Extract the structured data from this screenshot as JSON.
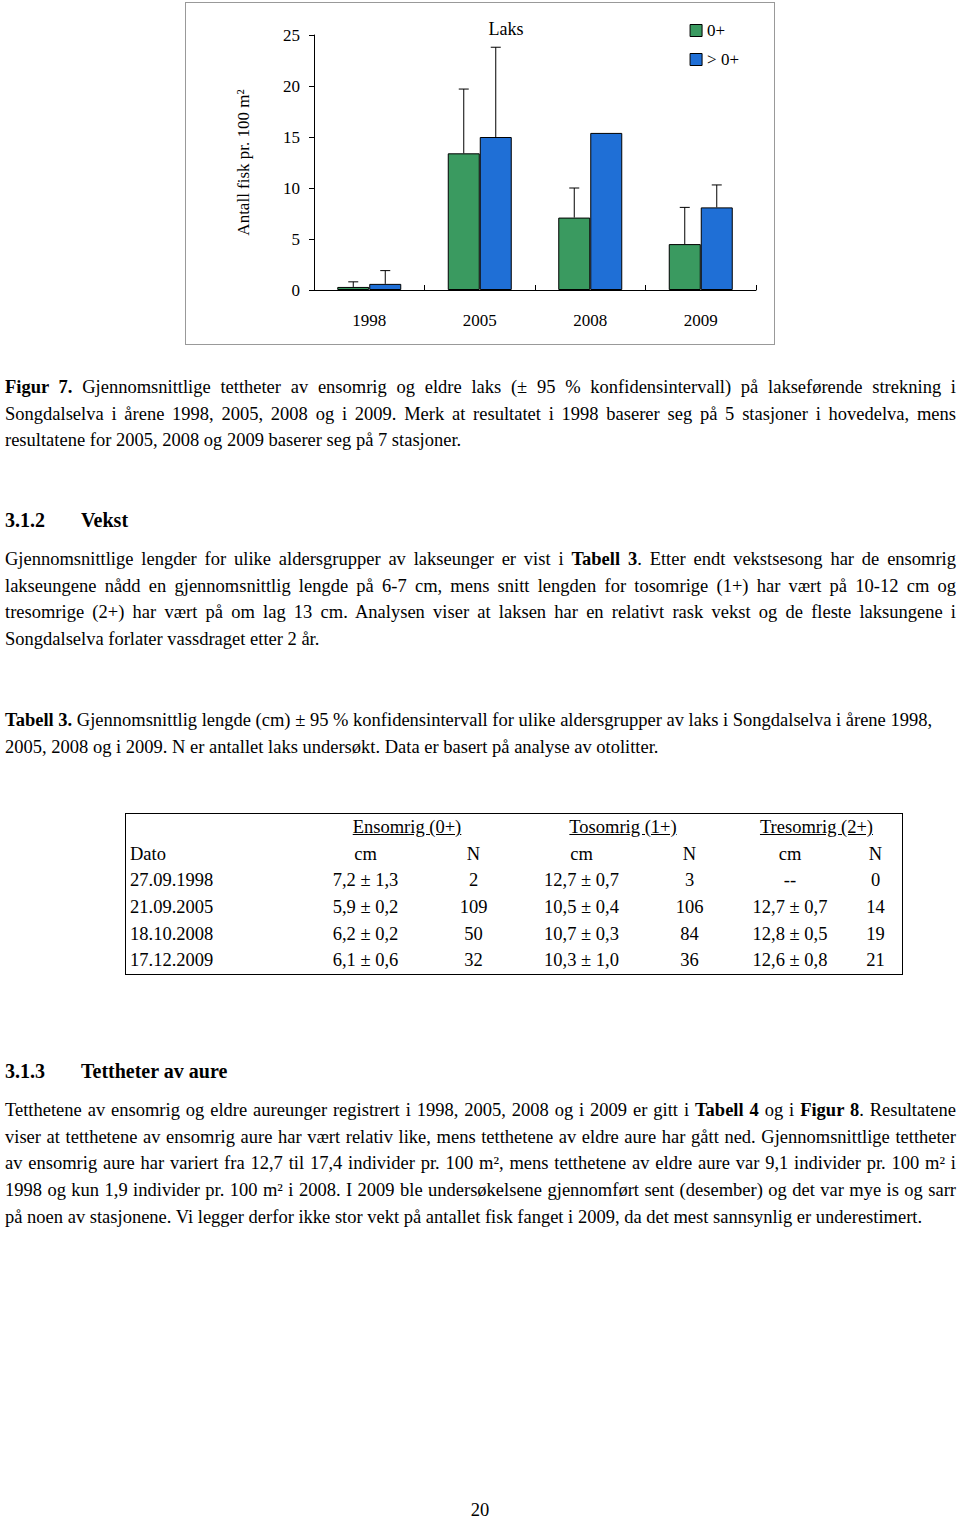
{
  "chart_data": {
    "type": "bar",
    "title": "Laks",
    "y_label": "Antall fisk pr. 100 m²",
    "categories": [
      "1998",
      "2005",
      "2008",
      "2009"
    ],
    "series": [
      {
        "name": "0+",
        "color": "#3a9a60",
        "values": [
          0.3,
          13.4,
          7.1,
          4.5
        ],
        "errors": [
          0.5,
          6.3,
          2.9,
          3.6
        ]
      },
      {
        "name": "> 0+",
        "color": "#1f6fd6",
        "values": [
          0.6,
          15.0,
          15.4,
          8.1
        ],
        "errors": [
          1.3,
          8.8,
          null,
          2.2
        ]
      }
    ],
    "ylim": [
      0,
      25
    ],
    "yticks": [
      0,
      5,
      10,
      15,
      20,
      25
    ],
    "grid": false,
    "legend": "top-right"
  },
  "document": {
    "caption": [
      {
        "t": "Figur 7.",
        "b": true
      },
      {
        "t": " Gjennomsnittlige tettheter av ensomrig og eldre laks (± 95 % konfidensintervall) på lakseførende strekning i Songdalselva i årene 1998, 2005, 2008 og i 2009. Merk at resultatet i 1998 baserer seg på 5 stasjoner i hovedelva, mens resultatene for 2005, 2008 og 2009 baserer seg på 7 stasjoner."
      }
    ],
    "section1": {
      "number": "3.1.2",
      "heading": "Vekst",
      "paragraph": [
        {
          "t": "Gjennomsnittlige lengder for ulike aldersgrupper av lakseunger er vist i "
        },
        {
          "t": "Tabell 3",
          "b": true
        },
        {
          "t": ". Etter endt vekstsesong har de ensomrig lakseungene nådd en gjennomsnittlig lengde på 6-7 cm, mens snitt lengden for tosomrige (1+) har vært på 10-12 cm og tresomrige (2+) har vært på om lag 13 cm. Analysen viser at laksen har en relativt rask vekst og de fleste laksungene i Songdalselva forlater vassdraget etter 2 år."
        }
      ]
    },
    "table_caption": [
      {
        "t": "Tabell 3.",
        "b": true
      },
      {
        "t": " Gjennomsnittlig lengde (cm) ± 95 % konfidensintervall for ulike aldersgrupper av laks i Songdalselva i årene 1998, 2005, 2008 og i 2009. N er antallet laks undersøkt. Data er basert på analyse av otolitter."
      }
    ],
    "table": {
      "groups": [
        "Ensomrig (0+)",
        "Tosomrig (1+)",
        "Tresomrig (2+)"
      ],
      "columns": [
        "Dato",
        "cm",
        "N",
        "cm",
        "N",
        "cm",
        "N"
      ],
      "rows": [
        [
          "27.09.1998",
          "7,2 ± 1,3",
          "2",
          "12,7 ± 0,7",
          "3",
          "--",
          "0"
        ],
        [
          "21.09.2005",
          "5,9 ± 0,2",
          "109",
          "10,5 ± 0,4",
          "106",
          "12,7 ± 0,7",
          "14"
        ],
        [
          "18.10.2008",
          "6,2 ± 0,2",
          "50",
          "10,7 ± 0,3",
          "84",
          "12,8 ± 0,5",
          "19"
        ],
        [
          "17.12.2009",
          "6,1 ± 0,6",
          "32",
          "10,3 ± 1,0",
          "36",
          "12,6 ± 0,8",
          "21"
        ]
      ]
    },
    "section2": {
      "number": "3.1.3",
      "heading": "Tettheter av aure",
      "paragraph": [
        {
          "t": "Tetthetene av ensomrig og eldre aureunger registrert i 1998, 2005, 2008 og i 2009 er gitt i "
        },
        {
          "t": "Tabell 4",
          "b": true
        },
        {
          "t": " og i "
        },
        {
          "t": "Figur 8",
          "b": true
        },
        {
          "t": ". Resultatene viser at tetthetene av ensomrig aure har vært relativ like, mens tetthetene av eldre aure har gått ned. Gjennomsnittlige tettheter av ensomrig aure har variert fra 12,7 til 17,4 individer pr. 100 m², mens tetthetene av eldre aure var 9,1 individer pr. 100 m² i 1998 og kun 1,9 individer pr. 100 m² i 2008. I 2009 ble undersøkelsene gjennomført sent (desember) og det var mye is og sarr på noen av stasjonene. Vi legger derfor ikke stor vekt på antallet fisk fanget i 2009, da det mest sannsynlig er underestimert."
        }
      ]
    },
    "page_number": "20"
  }
}
